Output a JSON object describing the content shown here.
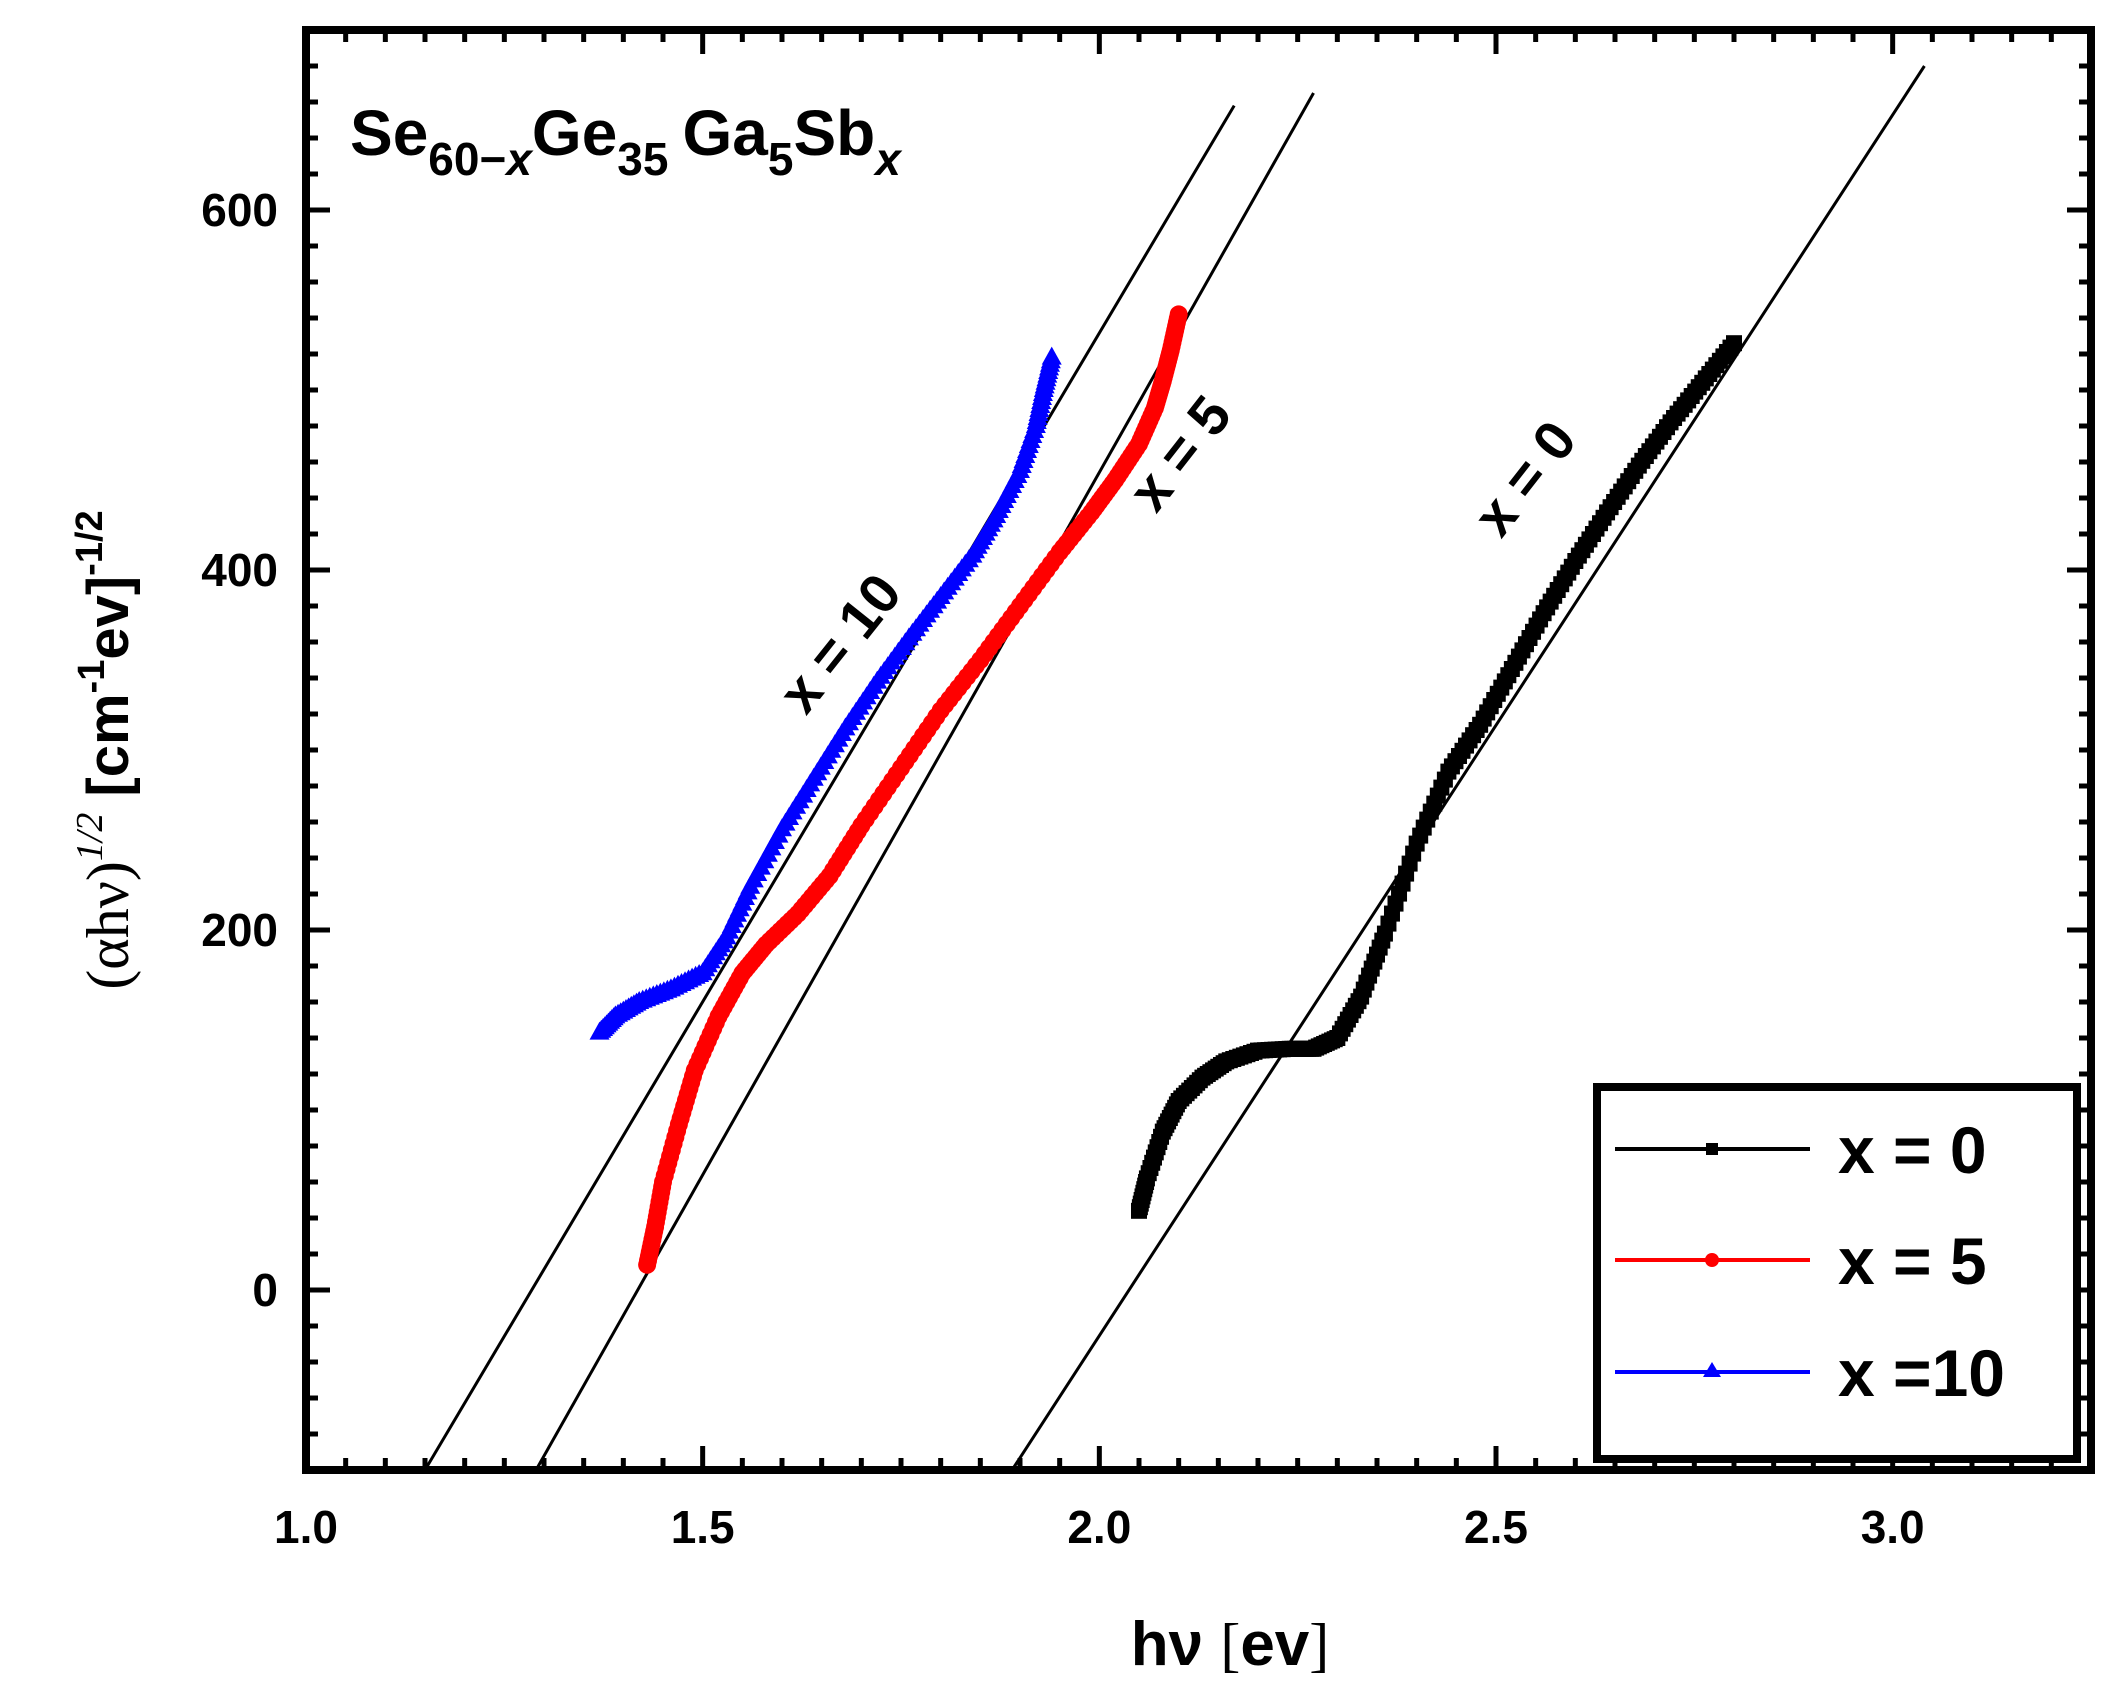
{
  "chart_data": {
    "type": "scatter",
    "title": "Se60-xGe35 Ga5Sbx",
    "title_parts": {
      "el1": "Se",
      "sub1": "60",
      "minus": "−",
      "sub1x": "x",
      "el2": "Ge",
      "sub2": "35",
      "el3": "Ga",
      "sub3": "5",
      "el4": "Sb",
      "sub4": "x"
    },
    "xlabel": "hν [ev]",
    "xlabel_parts": {
      "text": "hν ",
      "bracket_open": "[",
      "unit": "ev",
      "bracket_close": "]"
    },
    "ylabel": "(αhν)1/2 [cm-1ev]-1/2",
    "ylabel_parts": {
      "paren": "(αhν)",
      "pow": "1/2",
      "bracket": "[cm",
      "neg1": "-1",
      "ev": "ev]",
      "negpow": "-1/2"
    },
    "xlim": [
      1.0,
      3.25
    ],
    "ylim": [
      -100,
      700
    ],
    "xticks": [
      1.0,
      1.5,
      2.0,
      2.5,
      3.0
    ],
    "xtick_labels": [
      "1.0",
      "1.5",
      "2.0",
      "2.5",
      "3.0"
    ],
    "yticks": [
      0,
      200,
      400,
      600
    ],
    "ytick_labels": [
      "0",
      "200",
      "400",
      "600"
    ],
    "series": [
      {
        "name": "x = 0",
        "color": "#000000",
        "marker": "square",
        "x": [
          2.05,
          2.06,
          2.08,
          2.1,
          2.13,
          2.16,
          2.2,
          2.24,
          2.27,
          2.3,
          2.33,
          2.36,
          2.4,
          2.44,
          2.48,
          2.52,
          2.56,
          2.6,
          2.64,
          2.68,
          2.72,
          2.76,
          2.8
        ],
        "y": [
          44,
          62,
          88,
          105,
          118,
          127,
          133,
          134,
          134,
          140,
          163,
          198,
          248,
          288,
          314,
          345,
          376,
          405,
          432,
          458,
          482,
          504,
          526
        ]
      },
      {
        "name": "x = 5",
        "color": "#ff0000",
        "marker": "circle",
        "x": [
          1.43,
          1.44,
          1.45,
          1.47,
          1.49,
          1.52,
          1.55,
          1.58,
          1.62,
          1.66,
          1.7,
          1.75,
          1.8,
          1.85,
          1.9,
          1.95,
          1.99,
          2.02,
          2.05,
          2.07,
          2.08,
          2.09,
          2.1
        ],
        "y": [
          14,
          35,
          60,
          92,
          122,
          152,
          176,
          192,
          209,
          230,
          258,
          290,
          322,
          350,
          380,
          410,
          432,
          450,
          470,
          490,
          505,
          522,
          542
        ]
      },
      {
        "name": "x =10",
        "color": "#0000ff",
        "marker": "triangle",
        "x": [
          1.37,
          1.39,
          1.42,
          1.46,
          1.5,
          1.53,
          1.56,
          1.6,
          1.64,
          1.68,
          1.72,
          1.76,
          1.8,
          1.84,
          1.87,
          1.9,
          1.92,
          1.93,
          1.94
        ],
        "y": [
          143,
          152,
          160,
          167,
          176,
          196,
          224,
          256,
          284,
          312,
          338,
          362,
          385,
          408,
          430,
          455,
          480,
          500,
          518
        ]
      }
    ],
    "fit_lines": [
      {
        "label": "x = 10",
        "x": [
          1.15,
          2.17
        ],
        "y": [
          -100,
          658
        ]
      },
      {
        "label": "x = 5",
        "x": [
          1.29,
          2.27
        ],
        "y": [
          -100,
          665
        ]
      },
      {
        "label": "x = 0",
        "x": [
          1.89,
          3.04
        ],
        "y": [
          -100,
          680
        ]
      }
    ],
    "annotations": [
      "x = 10",
      "x = 5",
      "x = 0"
    ],
    "legend": {
      "position": "bottom-right",
      "entries": [
        "x = 0",
        "x = 5",
        "x =10"
      ]
    }
  }
}
